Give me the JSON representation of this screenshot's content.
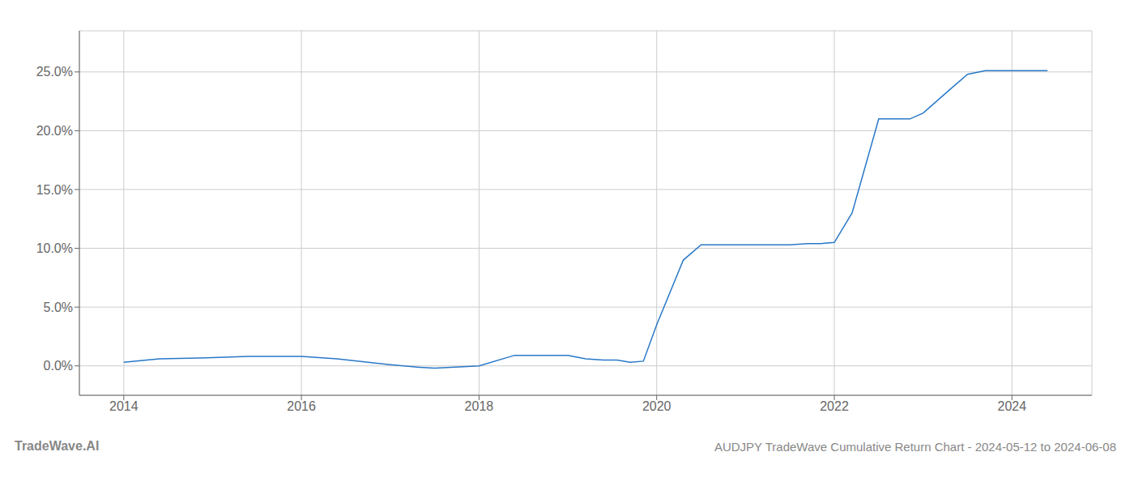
{
  "chart_data": {
    "type": "line",
    "title": "AUDJPY TradeWave Cumulative Return Chart - 2024-05-12 to 2024-06-08",
    "annotations": [
      "TradeWave.AI"
    ],
    "color": "#2878c8",
    "grid": true,
    "x": [
      2014.0,
      2014.4,
      2015.0,
      2015.4,
      2016.0,
      2016.4,
      2017.0,
      2017.3,
      2017.5,
      2018.0,
      2018.4,
      2018.8,
      2019.0,
      2019.2,
      2019.4,
      2019.55,
      2019.7,
      2019.85,
      2020.0,
      2020.3,
      2020.5,
      2020.8,
      2021.0,
      2021.3,
      2021.5,
      2021.7,
      2021.85,
      2022.0,
      2022.2,
      2022.5,
      2022.7,
      2022.85,
      2023.0,
      2023.3,
      2023.5,
      2023.7,
      2024.0,
      2024.4
    ],
    "values": [
      0.003,
      0.006,
      0.007,
      0.008,
      0.008,
      0.006,
      0.001,
      -0.001,
      -0.002,
      0.0,
      0.009,
      0.009,
      0.009,
      0.006,
      0.005,
      0.005,
      0.003,
      0.004,
      0.035,
      0.09,
      0.103,
      0.103,
      0.103,
      0.103,
      0.103,
      0.104,
      0.104,
      0.105,
      0.13,
      0.21,
      0.21,
      0.21,
      0.215,
      0.235,
      0.248,
      0.251,
      0.251,
      0.251
    ],
    "xlim": [
      2013.5,
      2024.9
    ],
    "ylim": [
      -0.025,
      0.285
    ],
    "xticks": [
      2014,
      2016,
      2018,
      2020,
      2022,
      2024
    ],
    "yticks": [
      {
        "value": 0.0,
        "label": "0.0%"
      },
      {
        "value": 0.05,
        "label": "5.0%"
      },
      {
        "value": 0.1,
        "label": "10.0%"
      },
      {
        "value": 0.15,
        "label": "15.0%"
      },
      {
        "value": 0.2,
        "label": "20.0%"
      },
      {
        "value": 0.25,
        "label": "25.0%"
      }
    ]
  }
}
